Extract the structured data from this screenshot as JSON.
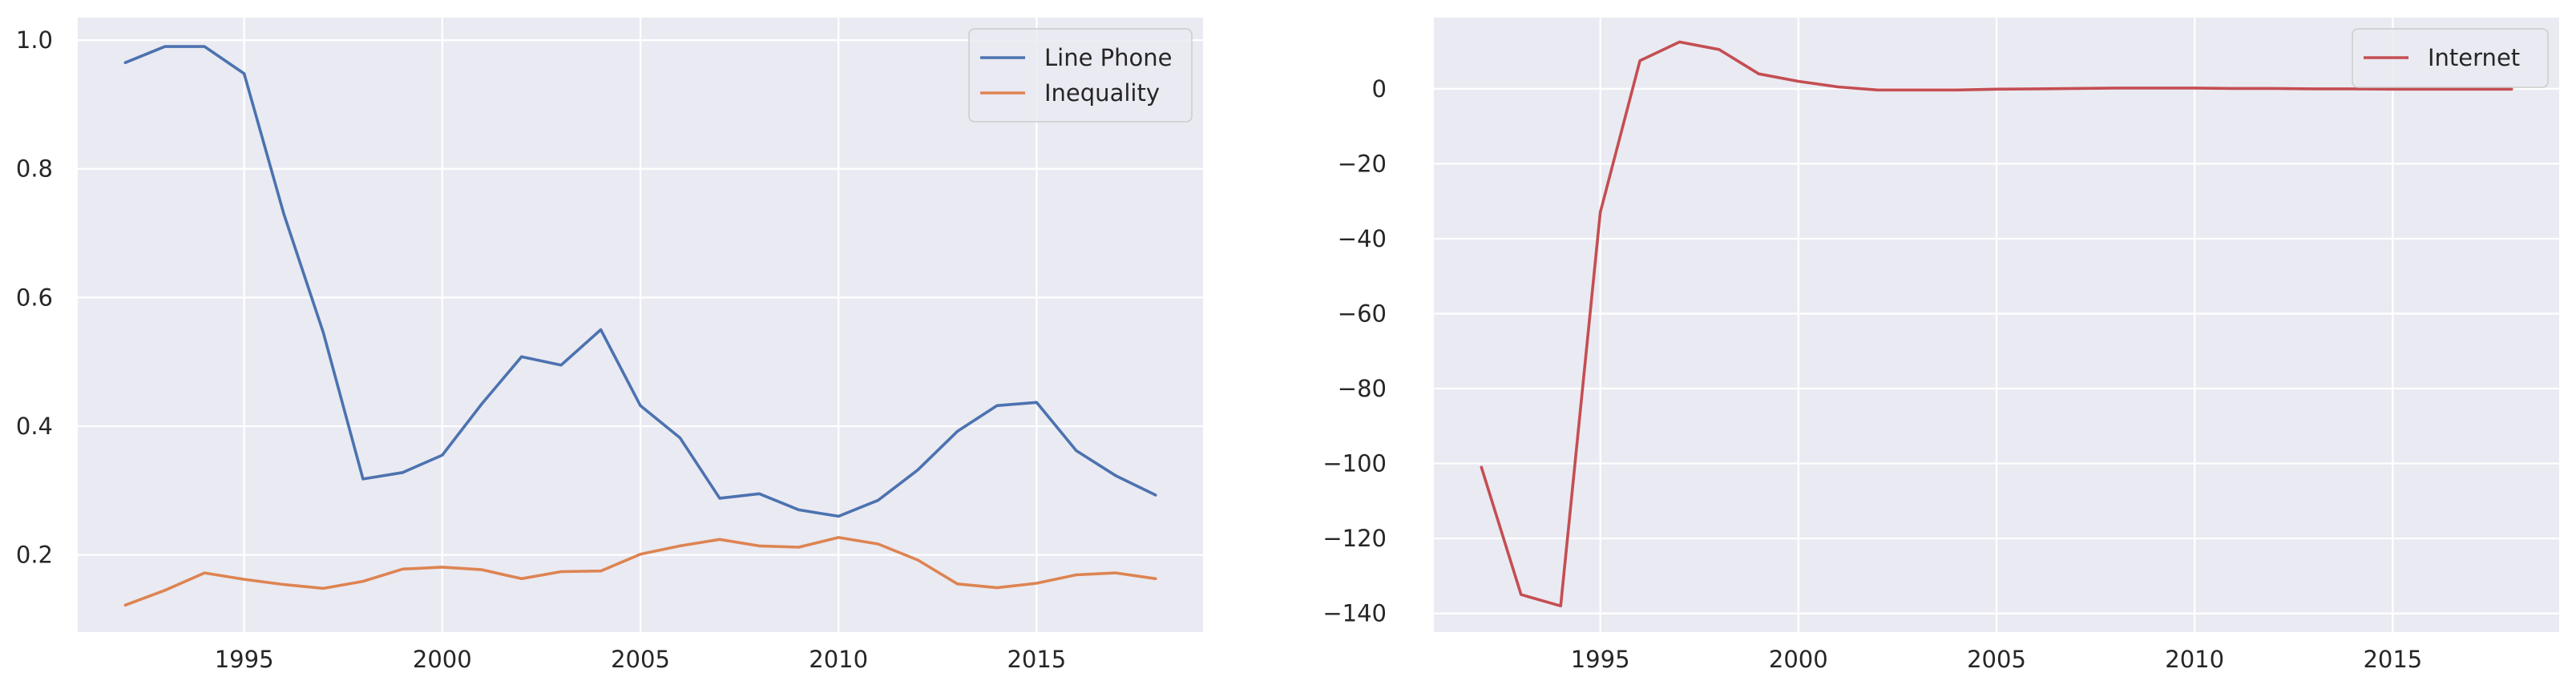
{
  "chart_data": [
    {
      "type": "line",
      "title": "",
      "xlabel": "",
      "ylabel": "",
      "xlim": [
        1990.8,
        2019.2
      ],
      "ylim": [
        0.08,
        1.035
      ],
      "grid": true,
      "legend_position": "top-right",
      "xticks": [
        1995,
        2000,
        2005,
        2010,
        2015
      ],
      "yticks": [
        0.2,
        0.4,
        0.6,
        0.8,
        1.0
      ],
      "ytick_labels": [
        "0.2",
        "0.4",
        "0.6",
        "0.8",
        "1.0"
      ],
      "x": [
        1992,
        1993,
        1994,
        1995,
        1996,
        1997,
        1998,
        1999,
        2000,
        2001,
        2002,
        2003,
        2004,
        2005,
        2006,
        2007,
        2008,
        2009,
        2010,
        2011,
        2012,
        2013,
        2014,
        2015,
        2016,
        2017,
        2018
      ],
      "series": [
        {
          "name": "Line Phone",
          "color": "#4c72b0",
          "values": [
            0.965,
            0.99,
            0.99,
            0.948,
            0.73,
            0.545,
            0.318,
            0.328,
            0.355,
            0.435,
            0.508,
            0.495,
            0.55,
            0.432,
            0.382,
            0.288,
            0.295,
            0.27,
            0.26,
            0.285,
            0.332,
            0.392,
            0.432,
            0.437,
            0.362,
            0.323,
            0.293
          ]
        },
        {
          "name": "Inequality",
          "color": "#dd8452",
          "values": [
            0.122,
            0.145,
            0.172,
            0.162,
            0.154,
            0.148,
            0.159,
            0.178,
            0.181,
            0.177,
            0.163,
            0.174,
            0.175,
            0.201,
            0.214,
            0.224,
            0.214,
            0.212,
            0.227,
            0.217,
            0.192,
            0.155,
            0.149,
            0.156,
            0.169,
            0.172,
            0.163
          ]
        }
      ]
    },
    {
      "type": "line",
      "title": "",
      "xlabel": "",
      "ylabel": "",
      "xlim": [
        1990.8,
        2019.2
      ],
      "ylim": [
        -145,
        19
      ],
      "grid": true,
      "legend_position": "top-right",
      "xticks": [
        1995,
        2000,
        2005,
        2010,
        2015
      ],
      "yticks": [
        -140,
        -120,
        -100,
        -80,
        -60,
        -40,
        -20,
        0
      ],
      "ytick_labels": [
        "−140",
        "−120",
        "−100",
        "−80",
        "−60",
        "−40",
        "−20",
        "0"
      ],
      "x": [
        1992,
        1993,
        1994,
        1995,
        1996,
        1997,
        1998,
        1999,
        2000,
        2001,
        2002,
        2003,
        2004,
        2005,
        2006,
        2007,
        2008,
        2009,
        2010,
        2011,
        2012,
        2013,
        2014,
        2015,
        2016,
        2017,
        2018
      ],
      "series": [
        {
          "name": "Internet",
          "color": "#c44e52",
          "values": [
            -101,
            -135,
            -138,
            -33,
            7.5,
            12.5,
            10.5,
            4,
            2,
            0.5,
            -0.3,
            -0.3,
            -0.3,
            -0.1,
            0,
            0.1,
            0.2,
            0.2,
            0.2,
            0.1,
            0.1,
            0,
            0,
            -0.1,
            -0.1,
            -0.1,
            -0.1
          ]
        }
      ]
    }
  ]
}
